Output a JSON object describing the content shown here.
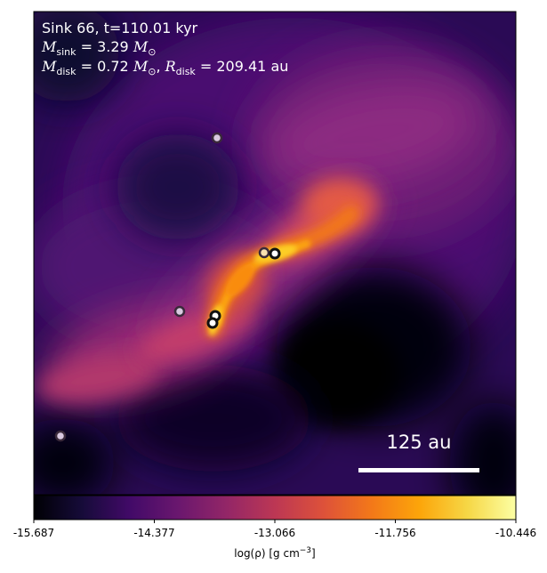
{
  "info": {
    "line1": "Sink 66, t=110.01 kyr",
    "m_sink_symbol": "M",
    "m_sink_sub": "sink",
    "m_sink_eq": " = 3.29 ",
    "m_sink_unit": "M",
    "m_sink_unit_sub": "⊙",
    "m_disk_symbol": "M",
    "m_disk_sub": "disk",
    "m_disk_eq": " = 0.72 ",
    "m_disk_unit": "M",
    "m_disk_unit_sub": "⊙",
    "sep": ", ",
    "r_disk_symbol": "R",
    "r_disk_sub": "disk",
    "r_disk_eq": " = 209.41 au"
  },
  "scale_bar": {
    "label": "125 au"
  },
  "colorbar": {
    "ticks": [
      "-15.687",
      "-14.377",
      "-13.066",
      "-11.756",
      "-10.446"
    ],
    "label_main": "log(ρ) [g cm",
    "label_sup": "−3",
    "label_end": "]",
    "colormap": "inferno"
  },
  "colors": {
    "background_void": "#04020f",
    "deep_purple": "#3b0f70",
    "magenta": "#8c2981",
    "pink": "#c43c75",
    "orange": "#f1605d",
    "bright_orange": "#fb9f1a",
    "yellow": "#f8f3a0",
    "sink_fill": "#ffffff",
    "sink_edge": "#222222"
  },
  "sinks": [
    {
      "name": "sink-1",
      "kind": "dim"
    },
    {
      "name": "sink-2",
      "kind": "warm"
    },
    {
      "name": "sink-3",
      "kind": "bright"
    },
    {
      "name": "sink-4",
      "kind": "dim"
    },
    {
      "name": "sink-5",
      "kind": "bright"
    },
    {
      "name": "sink-6",
      "kind": "bright"
    },
    {
      "name": "sink-7",
      "kind": "dim"
    }
  ]
}
